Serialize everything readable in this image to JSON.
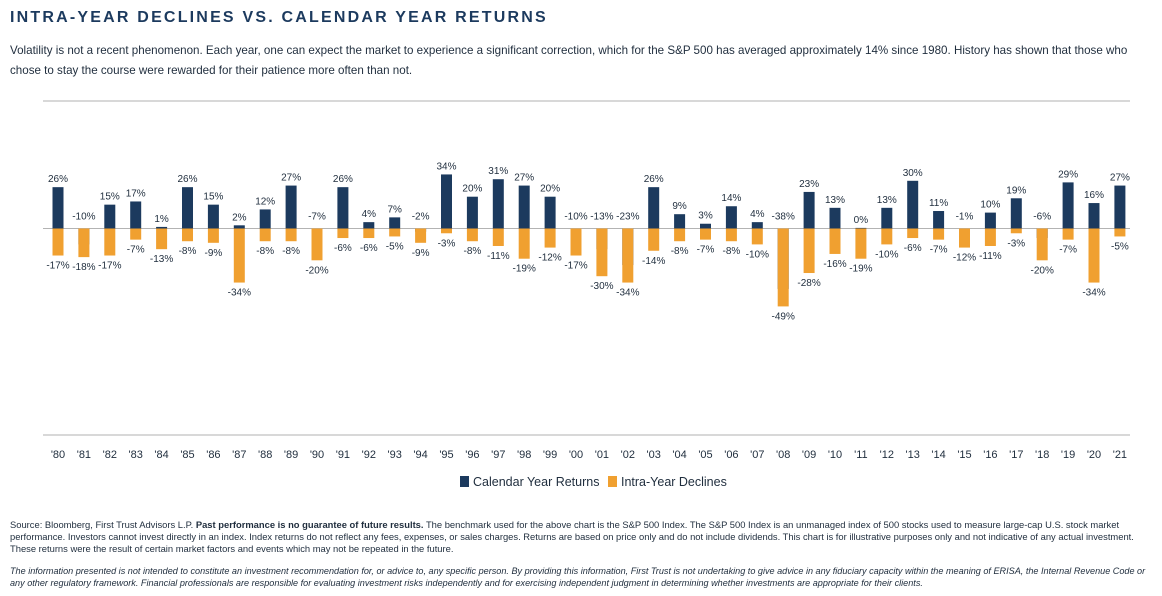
{
  "header": {
    "title": "INTRA-YEAR DECLINES VS. CALENDAR YEAR RETURNS",
    "subtitle": "Volatility is not a recent phenomenon. Each year, one can expect the market to experience a significant correction, which for the S&P 500 has averaged approximately 14% since 1980. History has shown that those who chose to stay the course were rewarded for their patience more often than not."
  },
  "chart_data": {
    "type": "bar",
    "title": "",
    "xlabel": "",
    "ylabel": "",
    "ylim": [
      -50,
      40
    ],
    "grid": false,
    "legend_position": "bottom-center",
    "categories": [
      "'80",
      "'81",
      "'82",
      "'83",
      "'84",
      "'85",
      "'86",
      "'87",
      "'88",
      "'89",
      "'90",
      "'91",
      "'92",
      "'93",
      "'94",
      "'95",
      "'96",
      "'97",
      "'98",
      "'99",
      "'00",
      "'01",
      "'02",
      "'03",
      "'04",
      "'05",
      "'06",
      "'07",
      "'08",
      "'09",
      "'10",
      "'11",
      "'12",
      "'13",
      "'14",
      "'15",
      "'16",
      "'17",
      "'18",
      "'19",
      "'20",
      "'21"
    ],
    "series": [
      {
        "name": "Calendar Year Returns",
        "color": "#1c3a5e",
        "values": [
          26,
          -10,
          15,
          17,
          1,
          26,
          15,
          2,
          12,
          27,
          -7,
          26,
          4,
          7,
          -2,
          34,
          20,
          31,
          27,
          20,
          -10,
          -13,
          -23,
          26,
          9,
          3,
          14,
          4,
          -38,
          23,
          13,
          0,
          13,
          30,
          11,
          -1,
          10,
          19,
          -6,
          29,
          16,
          27
        ]
      },
      {
        "name": "Intra-Year Declines",
        "color": "#f0a030",
        "values": [
          -17,
          -18,
          -17,
          -7,
          -13,
          -8,
          -9,
          -34,
          -8,
          -8,
          -20,
          -6,
          -6,
          -5,
          -9,
          -3,
          -8,
          -11,
          -19,
          -12,
          -17,
          -30,
          -34,
          -14,
          -8,
          -7,
          -8,
          -10,
          -49,
          -28,
          -16,
          -19,
          -10,
          -6,
          -7,
          -12,
          -11,
          -3,
          -20,
          -7,
          -34,
          -5
        ]
      }
    ]
  },
  "footer": {
    "source_prefix": "Source: Bloomberg, First Trust Advisors L.P. ",
    "source_bold": "Past performance is no guarantee of future results.",
    "source_rest": " The benchmark used for the above chart is the S&P 500 Index. The S&P 500 Index is an unmanaged index of 500 stocks used to measure large-cap U.S. stock market performance. Investors cannot invest directly in an index. Index returns do not reflect any fees, expenses, or sales charges. Returns are based on price only and do not include dividends. This chart is for illustrative purposes only and not indicative of any actual investment. These returns were the result of certain market factors and events which may not be repeated in the future.",
    "disclaimer": "The information presented is not intended to constitute an investment recommendation for, or advice to, any specific person. By providing this information, First Trust is not undertaking to give advice in any fiduciary capacity within the meaning of ERISA, the Internal Revenue Code or any other regulatory framework. Financial professionals are responsible for evaluating investment risks independently and for exercising independent judgment in determining whether investments are appropriate for their clients."
  }
}
